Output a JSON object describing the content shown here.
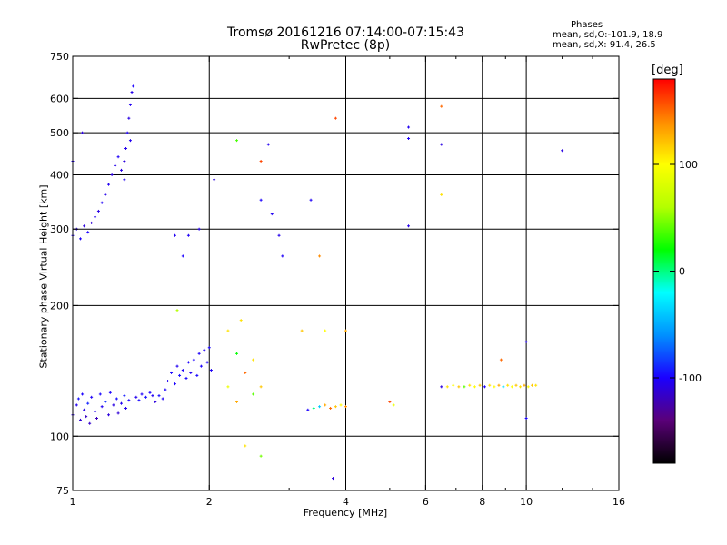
{
  "header": {
    "title_line1": "Tromsø 20161216 07:14:00-07:15:43",
    "title_line2": "RwPretec (8p)"
  },
  "phases_box": {
    "title": "Phases",
    "line1": "mean, sd,O:-101.9, 18.9",
    "line2": "mean, sd,X:  91.4, 26.5"
  },
  "colorbar": {
    "unit_label": "[deg]",
    "ticks": [
      {
        "label": "100",
        "value": 100
      },
      {
        "label": "0",
        "value": 0
      },
      {
        "label": "-100",
        "value": -100
      }
    ],
    "range": [
      -180,
      180
    ],
    "colors": [
      "#000000",
      "#5a0078",
      "#1b00ff",
      "#0090ff",
      "#00ffff",
      "#00ff00",
      "#b4ff00",
      "#ffff00",
      "#ff8c00",
      "#ff0000"
    ]
  },
  "chart_data": {
    "type": "scatter",
    "title": "Tromsø 20161216 07:14:00-07:15:43",
    "subtitle": "RwPretec (8p)",
    "xlabel": "Frequency [MHz]",
    "ylabel": "Stationary phase Virtual Height [km]",
    "x_scale": "log",
    "y_scale": "log",
    "xlim": [
      1,
      16
    ],
    "ylim": [
      75,
      750
    ],
    "grid": true,
    "x_ticks": [
      {
        "label": "1",
        "value": 1
      },
      {
        "label": "2",
        "value": 2
      },
      {
        "label": "4",
        "value": 4
      },
      {
        "label": "6",
        "value": 6
      },
      {
        "label": "8",
        "value": 8
      },
      {
        "label": "10",
        "value": 10
      },
      {
        "label": "16",
        "value": 16
      }
    ],
    "x_minor_ticks": [
      3,
      5,
      7,
      9,
      12,
      14
    ],
    "x_grid": [
      2,
      4,
      6,
      8,
      10
    ],
    "y_ticks": [
      {
        "label": "75",
        "value": 75
      },
      {
        "label": "100",
        "value": 100
      },
      {
        "label": "200",
        "value": 200
      },
      {
        "label": "300",
        "value": 300
      },
      {
        "label": "400",
        "value": 400
      },
      {
        "label": "500",
        "value": 500
      },
      {
        "label": "600",
        "value": 600
      },
      {
        "label": "750",
        "value": 750
      }
    ],
    "y_grid": [
      100,
      200,
      300,
      400,
      500,
      600
    ],
    "color_scale": "phase_deg",
    "points": [
      [
        1.0,
        112,
        -110
      ],
      [
        1.02,
        118,
        -105
      ],
      [
        1.03,
        122,
        -95
      ],
      [
        1.04,
        109,
        -112
      ],
      [
        1.05,
        125,
        -100
      ],
      [
        1.06,
        115,
        -108
      ],
      [
        1.07,
        111,
        -118
      ],
      [
        1.08,
        119,
        -90
      ],
      [
        1.09,
        107,
        -115
      ],
      [
        1.1,
        123,
        -102
      ],
      [
        1.12,
        114,
        -106
      ],
      [
        1.13,
        110,
        -120
      ],
      [
        1.15,
        125,
        -98
      ],
      [
        1.16,
        117,
        -104
      ],
      [
        1.18,
        120,
        -85
      ],
      [
        1.2,
        112,
        -110
      ],
      [
        1.21,
        126,
        -100
      ],
      [
        1.23,
        118,
        -108
      ],
      [
        1.25,
        122,
        -96
      ],
      [
        1.26,
        113,
        -112
      ],
      [
        1.28,
        119,
        -104
      ],
      [
        1.3,
        124,
        -92
      ],
      [
        1.31,
        116,
        -106
      ],
      [
        1.33,
        121,
        -100
      ],
      [
        1.38,
        123,
        -105
      ],
      [
        1.4,
        121,
        -98
      ],
      [
        1.42,
        125,
        -102
      ],
      [
        1.45,
        123,
        -95
      ],
      [
        1.48,
        126,
        -100
      ],
      [
        1.5,
        124,
        -104
      ],
      [
        1.52,
        120,
        -110
      ],
      [
        1.55,
        124,
        -96
      ],
      [
        1.58,
        122,
        -102
      ],
      [
        1.6,
        128,
        -100
      ],
      [
        1.62,
        134,
        -104
      ],
      [
        1.65,
        140,
        -98
      ],
      [
        1.68,
        132,
        -100
      ],
      [
        1.7,
        145,
        -104
      ],
      [
        1.72,
        138,
        -96
      ],
      [
        1.75,
        142,
        -102
      ],
      [
        1.78,
        136,
        -98
      ],
      [
        1.8,
        148,
        -100
      ],
      [
        1.82,
        140,
        -104
      ],
      [
        1.85,
        150,
        -100
      ],
      [
        1.88,
        138,
        -98
      ],
      [
        1.9,
        155,
        -102
      ],
      [
        1.92,
        145,
        -100
      ],
      [
        1.95,
        158,
        -104
      ],
      [
        1.98,
        148,
        -100
      ],
      [
        2.0,
        160,
        -98
      ],
      [
        2.02,
        142,
        -102
      ],
      [
        1.0,
        290,
        -105
      ],
      [
        1.02,
        300,
        -108
      ],
      [
        1.04,
        285,
        -102
      ],
      [
        1.06,
        305,
        -110
      ],
      [
        1.08,
        295,
        -100
      ],
      [
        1.1,
        310,
        -112
      ],
      [
        1.12,
        320,
        -104
      ],
      [
        1.14,
        330,
        -108
      ],
      [
        1.16,
        345,
        -102
      ],
      [
        1.18,
        360,
        -106
      ],
      [
        1.2,
        380,
        -104
      ],
      [
        1.22,
        400,
        -110
      ],
      [
        1.24,
        420,
        -106
      ],
      [
        1.26,
        440,
        -102
      ],
      [
        1.28,
        410,
        -108
      ],
      [
        1.3,
        390,
        -104
      ],
      [
        1.31,
        460,
        -106
      ],
      [
        1.32,
        500,
        -102
      ],
      [
        1.33,
        540,
        -108
      ],
      [
        1.34,
        580,
        -104
      ],
      [
        1.35,
        620,
        -106
      ],
      [
        1.36,
        640,
        -100
      ],
      [
        1.3,
        430,
        -110
      ],
      [
        1.34,
        480,
        -104
      ],
      [
        1.05,
        500,
        -110
      ],
      [
        1.0,
        430,
        -106
      ],
      [
        1.68,
        290,
        -104
      ],
      [
        1.8,
        290,
        -102
      ],
      [
        1.9,
        300,
        -106
      ],
      [
        1.75,
        260,
        -100
      ],
      [
        2.05,
        390,
        -110
      ],
      [
        2.6,
        350,
        -100
      ],
      [
        2.75,
        325,
        -104
      ],
      [
        2.85,
        290,
        -106
      ],
      [
        2.9,
        260,
        -102
      ],
      [
        3.35,
        350,
        -102
      ],
      [
        2.7,
        470,
        -104
      ],
      [
        5.5,
        515,
        -104
      ],
      [
        5.5,
        485,
        -102
      ],
      [
        5.5,
        305,
        -106
      ],
      [
        6.5,
        470,
        -108
      ],
      [
        12.0,
        455,
        -108
      ],
      [
        10.0,
        165,
        -104
      ],
      [
        10.0,
        110,
        -100
      ],
      [
        3.75,
        80,
        -110
      ],
      [
        2.3,
        480,
        35
      ],
      [
        2.6,
        430,
        160
      ],
      [
        3.5,
        260,
        140
      ],
      [
        3.8,
        540,
        160
      ],
      [
        6.5,
        575,
        150
      ],
      [
        6.5,
        360,
        110
      ],
      [
        2.4,
        95,
        110
      ],
      [
        2.6,
        90,
        45
      ],
      [
        2.5,
        150,
        110
      ],
      [
        2.4,
        140,
        150
      ],
      [
        2.2,
        130,
        90
      ],
      [
        2.3,
        120,
        130
      ],
      [
        2.5,
        125,
        40
      ],
      [
        2.6,
        130,
        120
      ],
      [
        2.2,
        175,
        110
      ],
      [
        2.3,
        155,
        20
      ],
      [
        1.7,
        195,
        60
      ],
      [
        2.35,
        185,
        110
      ],
      [
        3.3,
        115,
        -100
      ],
      [
        3.4,
        116,
        0
      ],
      [
        3.5,
        117,
        -40
      ],
      [
        3.6,
        118,
        130
      ],
      [
        3.7,
        116,
        150
      ],
      [
        3.8,
        117,
        120
      ],
      [
        3.9,
        118,
        100
      ],
      [
        4.0,
        117,
        140
      ],
      [
        5.0,
        120,
        160
      ],
      [
        5.1,
        118,
        90
      ],
      [
        3.2,
        175,
        120
      ],
      [
        3.6,
        175,
        100
      ],
      [
        4.0,
        175,
        130
      ],
      [
        6.5,
        130,
        -110
      ],
      [
        6.7,
        130,
        110
      ],
      [
        6.9,
        131,
        100
      ],
      [
        7.1,
        130,
        120
      ],
      [
        7.3,
        130,
        40
      ],
      [
        7.5,
        131,
        110
      ],
      [
        7.7,
        130,
        100
      ],
      [
        7.9,
        131,
        120
      ],
      [
        8.1,
        130,
        -100
      ],
      [
        8.3,
        131,
        110
      ],
      [
        8.5,
        130,
        100
      ],
      [
        8.7,
        131,
        130
      ],
      [
        8.9,
        130,
        -30
      ],
      [
        9.1,
        131,
        110
      ],
      [
        9.3,
        130,
        100
      ],
      [
        9.5,
        131,
        120
      ],
      [
        9.7,
        130,
        110
      ],
      [
        9.9,
        131,
        130
      ],
      [
        10.1,
        130,
        100
      ],
      [
        10.3,
        131,
        120
      ],
      [
        10.5,
        131,
        110
      ],
      [
        8.8,
        150,
        150
      ]
    ]
  }
}
